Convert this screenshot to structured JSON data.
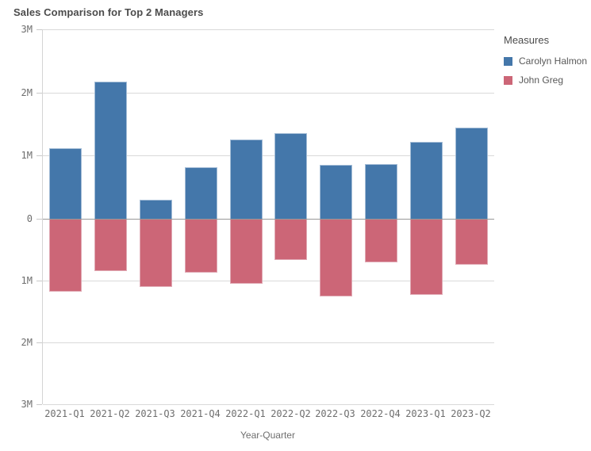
{
  "title": "Sales Comparison for Top 2 Managers",
  "legend": {
    "title": "Measures",
    "items": [
      {
        "label": "Carolyn Halmon",
        "color": "#4477aa"
      },
      {
        "label": "John Greg",
        "color": "#cc6677"
      }
    ]
  },
  "chart_data": {
    "type": "bar",
    "subtype": "diverging-vertical",
    "title": "Sales Comparison for Top 2 Managers",
    "xlabel": "Year-Quarter",
    "ylabel": "",
    "unit": "M",
    "grid": true,
    "legend_position": "top-right",
    "categories": [
      "2021-Q1",
      "2021-Q2",
      "2021-Q3",
      "2021-Q4",
      "2022-Q1",
      "2022-Q2",
      "2022-Q3",
      "2022-Q4",
      "2023-Q1",
      "2023-Q2"
    ],
    "series": [
      {
        "name": "Carolyn Halmon",
        "color": "#4477aa",
        "direction": "up",
        "values": [
          1.12,
          2.17,
          0.3,
          0.81,
          1.26,
          1.35,
          0.85,
          0.86,
          1.22,
          1.44
        ]
      },
      {
        "name": "John Greg",
        "color": "#cc6677",
        "direction": "down",
        "values": [
          1.18,
          0.85,
          1.1,
          0.87,
          1.05,
          0.67,
          1.25,
          0.71,
          1.23,
          0.74
        ]
      }
    ],
    "y_axis": {
      "range": [
        -3,
        3
      ],
      "ticks": [
        {
          "value": 3,
          "label": "3M"
        },
        {
          "value": 2,
          "label": "2M"
        },
        {
          "value": 1,
          "label": "1M"
        },
        {
          "value": 0,
          "label": "0"
        },
        {
          "value": -1,
          "label": "1M"
        },
        {
          "value": -2,
          "label": "2M"
        },
        {
          "value": -3,
          "label": "3M"
        }
      ]
    }
  },
  "colors": {
    "series_blue": "#4477aa",
    "series_red": "#cc6677",
    "series_blue_border": "#a3bcd6",
    "series_red_border": "#e0a9b4",
    "gridline": "#d9d9d9",
    "zero_line": "#999999",
    "title_text": "#4c4c4c",
    "axis_text": "#6e6e6e",
    "legend_text": "#595959"
  }
}
